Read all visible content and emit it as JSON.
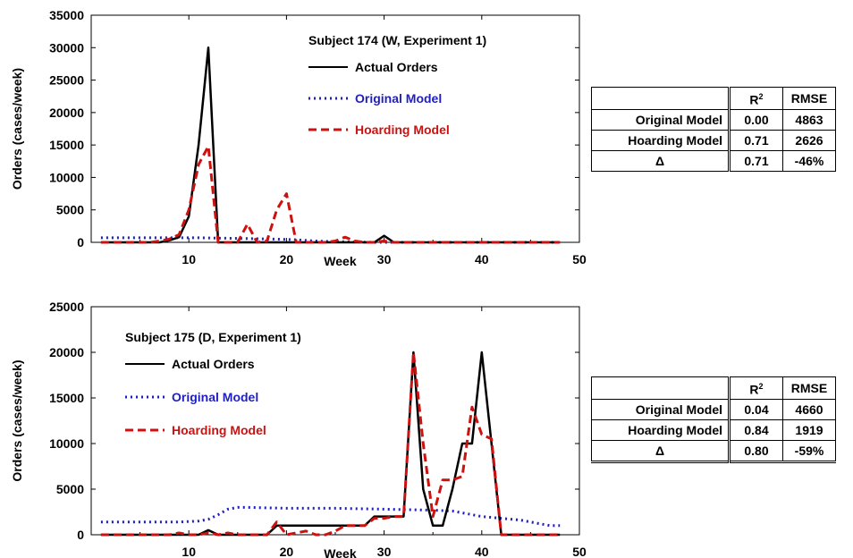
{
  "chart_data": [
    {
      "type": "line",
      "title": "Subject 174 (W, Experiment 1)",
      "xlabel": "Week",
      "ylabel": "Orders (cases/week)",
      "xlim": [
        0,
        50
      ],
      "ylim": [
        0,
        35000
      ],
      "xticks": [
        "10",
        "20",
        "30",
        "40",
        "50"
      ],
      "yticks": [
        "0",
        "5000",
        "10000",
        "15000",
        "20000",
        "25000",
        "30000",
        "35000"
      ],
      "grid": false,
      "legend_position": "top-right inside",
      "series": [
        {
          "name": "Actual Orders",
          "color": "#000000",
          "style": "solid",
          "x": [
            1,
            2,
            3,
            4,
            5,
            6,
            7,
            8,
            9,
            10,
            11,
            12,
            13,
            14,
            15,
            16,
            17,
            18,
            19,
            20,
            21,
            22,
            23,
            24,
            25,
            26,
            27,
            28,
            29,
            30,
            31,
            32,
            33,
            34,
            35,
            36,
            37,
            38,
            39,
            40,
            41,
            42,
            43,
            44,
            45,
            46,
            47,
            48
          ],
          "y": [
            0,
            0,
            0,
            0,
            0,
            0,
            0,
            300,
            800,
            4000,
            15000,
            30000,
            0,
            0,
            0,
            0,
            0,
            0,
            0,
            0,
            0,
            0,
            0,
            0,
            0,
            0,
            0,
            0,
            0,
            1000,
            0,
            0,
            0,
            0,
            0,
            0,
            0,
            0,
            0,
            0,
            0,
            0,
            0,
            0,
            0,
            0,
            0,
            0
          ]
        },
        {
          "name": "Original Model",
          "color": "#1f1fbf",
          "style": "dotted",
          "x": [
            1,
            3,
            5,
            7,
            9,
            11,
            13,
            15,
            17,
            19,
            21,
            23,
            25,
            27,
            29,
            31,
            33,
            35,
            37,
            39,
            41,
            43,
            45,
            47,
            48
          ],
          "y": [
            700,
            700,
            700,
            700,
            700,
            700,
            650,
            600,
            550,
            500,
            400,
            200,
            100,
            50,
            0,
            0,
            0,
            0,
            0,
            0,
            0,
            0,
            0,
            0,
            0
          ]
        },
        {
          "name": "Hoarding Model",
          "color": "#cc1111",
          "style": "dashed",
          "x": [
            1,
            2,
            3,
            4,
            5,
            6,
            7,
            8,
            9,
            10,
            11,
            12,
            13,
            14,
            15,
            16,
            17,
            18,
            19,
            20,
            21,
            22,
            23,
            24,
            25,
            26,
            27,
            28,
            29,
            30,
            31,
            32,
            33,
            34,
            35,
            36,
            37,
            38,
            39,
            40,
            41,
            42,
            43,
            44,
            45,
            46,
            47,
            48
          ],
          "y": [
            0,
            0,
            0,
            0,
            0,
            0,
            200,
            500,
            1200,
            5000,
            12000,
            14800,
            0,
            0,
            0,
            2800,
            0,
            200,
            5000,
            7500,
            0,
            0,
            0,
            0,
            200,
            800,
            200,
            0,
            0,
            200,
            0,
            0,
            0,
            0,
            0,
            0,
            0,
            0,
            0,
            0,
            0,
            0,
            0,
            0,
            0,
            0,
            0,
            0
          ]
        }
      ]
    },
    {
      "type": "line",
      "title": "Subject 175 (D, Experiment 1)",
      "xlabel": "Week",
      "ylabel": "Orders (cases/week)",
      "xlim": [
        0,
        50
      ],
      "ylim": [
        0,
        25000
      ],
      "xticks": [
        "10",
        "20",
        "30",
        "40",
        "50"
      ],
      "yticks": [
        "0",
        "5000",
        "10000",
        "15000",
        "20000",
        "25000"
      ],
      "grid": false,
      "legend_position": "top-left inside",
      "series": [
        {
          "name": "Actual Orders",
          "color": "#000000",
          "style": "solid",
          "x": [
            1,
            2,
            3,
            4,
            5,
            6,
            7,
            8,
            9,
            10,
            11,
            12,
            13,
            14,
            15,
            16,
            17,
            18,
            19,
            20,
            21,
            22,
            23,
            24,
            25,
            26,
            27,
            28,
            29,
            30,
            31,
            32,
            33,
            34,
            35,
            36,
            37,
            38,
            39,
            40,
            41,
            42,
            43,
            44,
            45,
            46,
            47,
            48
          ],
          "y": [
            0,
            0,
            0,
            0,
            0,
            0,
            0,
            0,
            0,
            0,
            0,
            500,
            0,
            0,
            0,
            0,
            0,
            0,
            1000,
            1000,
            1000,
            1000,
            1000,
            1000,
            1000,
            1000,
            1000,
            1000,
            2000,
            2000,
            2000,
            2000,
            20000,
            5000,
            1000,
            1000,
            5000,
            10000,
            10000,
            20000,
            10000,
            0,
            0,
            0,
            0,
            0,
            0,
            0
          ]
        },
        {
          "name": "Original Model",
          "color": "#1f1fbf",
          "style": "dotted",
          "x": [
            1,
            5,
            9,
            11,
            12,
            13,
            14,
            15,
            16,
            20,
            25,
            30,
            35,
            37,
            38,
            40,
            42,
            44,
            46,
            47,
            48
          ],
          "y": [
            1400,
            1400,
            1400,
            1500,
            1700,
            2200,
            2800,
            3000,
            3000,
            2900,
            2900,
            2800,
            2700,
            2600,
            2400,
            2000,
            1800,
            1600,
            1200,
            1000,
            1000
          ]
        },
        {
          "name": "Hoarding Model",
          "color": "#cc1111",
          "style": "dashed",
          "x": [
            1,
            2,
            3,
            4,
            5,
            6,
            7,
            8,
            9,
            10,
            11,
            12,
            13,
            14,
            15,
            16,
            17,
            18,
            19,
            20,
            21,
            22,
            23,
            24,
            25,
            26,
            27,
            28,
            29,
            30,
            31,
            32,
            33,
            34,
            35,
            36,
            37,
            38,
            39,
            40,
            41,
            42,
            43,
            44,
            45,
            46,
            47,
            48
          ],
          "y": [
            0,
            0,
            0,
            0,
            0,
            0,
            0,
            0,
            200,
            0,
            0,
            200,
            0,
            200,
            0,
            0,
            0,
            0,
            1400,
            0,
            200,
            400,
            0,
            0,
            400,
            1000,
            1000,
            1000,
            1800,
            1800,
            2000,
            2000,
            20000,
            10000,
            2000,
            6000,
            6000,
            6400,
            14000,
            11000,
            10500,
            0,
            0,
            0,
            0,
            0,
            0,
            0
          ]
        }
      ]
    }
  ],
  "tables": [
    {
      "header": [
        "",
        "R²",
        "RMSE"
      ],
      "rows": [
        [
          "Original Model",
          "0.00",
          "4863"
        ],
        [
          "Hoarding Model",
          "0.71",
          "2626"
        ],
        [
          "Δ",
          "0.71",
          "-46%"
        ]
      ]
    },
    {
      "header": [
        "",
        "R²",
        "RMSE"
      ],
      "rows": [
        [
          "Original Model",
          "0.04",
          "4660"
        ],
        [
          "Hoarding Model",
          "0.84",
          "1919"
        ],
        [
          "Δ",
          "0.80",
          "-59%"
        ]
      ]
    }
  ]
}
